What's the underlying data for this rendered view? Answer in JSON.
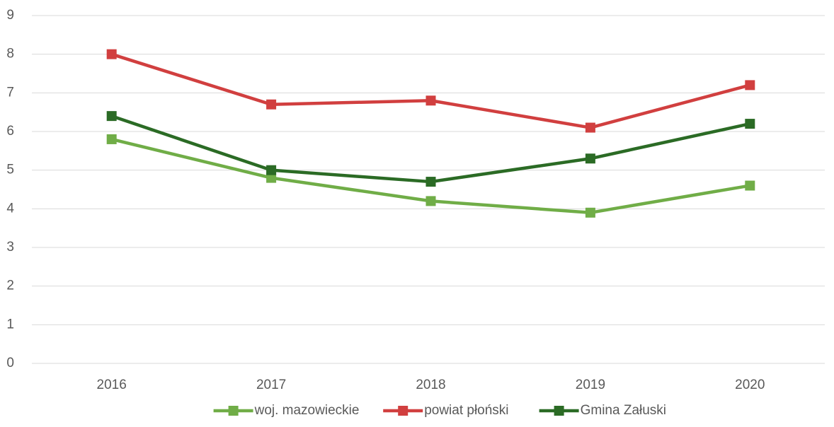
{
  "chart_data": {
    "type": "line",
    "categories": [
      "2016",
      "2017",
      "2018",
      "2019",
      "2020"
    ],
    "series": [
      {
        "name": "woj. mazowieckie",
        "color": "#70ad47",
        "values": [
          5.8,
          4.8,
          4.2,
          3.9,
          4.6
        ]
      },
      {
        "name": "powiat płoński",
        "color": "#d13f3f",
        "values": [
          8,
          6.7,
          6.8,
          6.1,
          7.2
        ]
      },
      {
        "name": "Gmina Załuski",
        "color": "#2b6b25",
        "values": [
          6.4,
          5.0,
          4.7,
          5.3,
          6.2
        ]
      }
    ],
    "ylim": [
      0,
      9
    ],
    "yticks": [
      0,
      1,
      2,
      3,
      4,
      5,
      6,
      7,
      8,
      9
    ],
    "grid": true,
    "legend": "bottom"
  }
}
